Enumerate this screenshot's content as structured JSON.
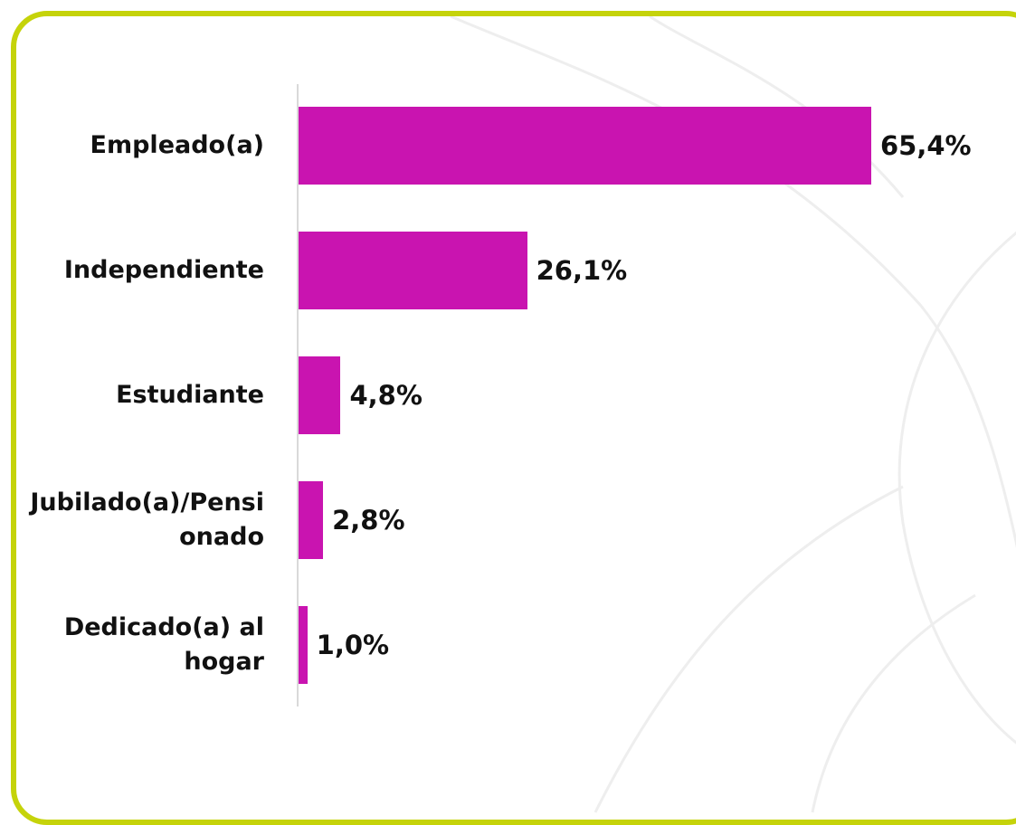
{
  "chart_data": {
    "type": "bar",
    "orientation": "horizontal",
    "categories": [
      "Empleado(a)",
      "Independiente",
      "Estudiante",
      "Jubilado(a)/Pensionado",
      "Dedicado(a) al hogar"
    ],
    "values": [
      65.4,
      26.1,
      4.8,
      2.8,
      1.0
    ],
    "value_labels": [
      "65,4%",
      "26,1%",
      "4,8%",
      "2,8%",
      "1,0%"
    ],
    "color": "#c914b0"
  }
}
